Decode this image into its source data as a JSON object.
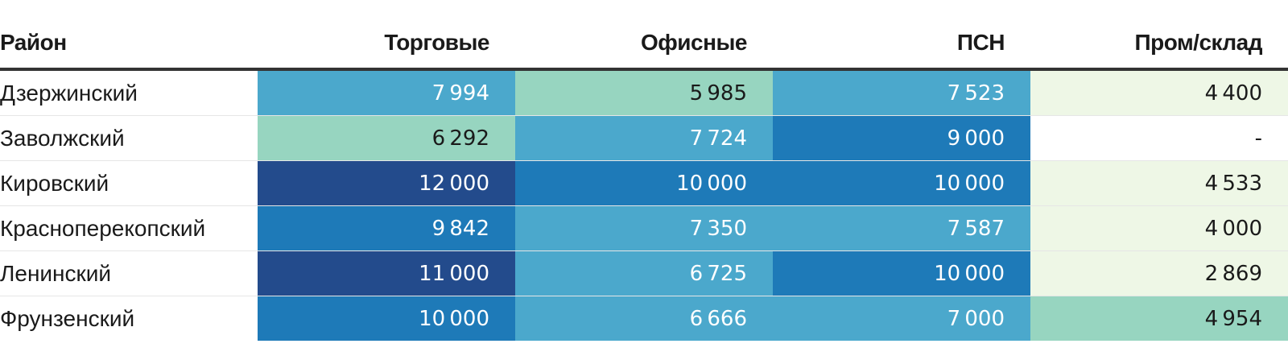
{
  "chart_data": {
    "type": "table",
    "columns": [
      "Район",
      "Торговые",
      "Офисные",
      "ПСН",
      "Пром/склад"
    ],
    "rows": [
      {
        "district": "Дзержинский",
        "values": [
          7994,
          5985,
          7523,
          4400
        ]
      },
      {
        "district": "Заволжский",
        "values": [
          6292,
          7724,
          9000,
          null
        ]
      },
      {
        "district": "Кировский",
        "values": [
          12000,
          10000,
          10000,
          4533
        ]
      },
      {
        "district": "Красноперекопский",
        "values": [
          9842,
          7350,
          7587,
          4000
        ]
      },
      {
        "district": "Ленинский",
        "values": [
          11000,
          6725,
          10000,
          2869
        ]
      },
      {
        "district": "Фрунзенский",
        "values": [
          10000,
          6666,
          7000,
          4954
        ]
      }
    ],
    "missing_label": "-",
    "color_scale": {
      "light_green": "#eef7e6",
      "mint": "#97d5c0",
      "light_blue": "#4ba8cc",
      "mid_blue": "#1e7ab8",
      "dark_blue": "#234b8c"
    },
    "text_colors": {
      "dark": "#1a1a1a",
      "light": "#ffffff"
    }
  }
}
